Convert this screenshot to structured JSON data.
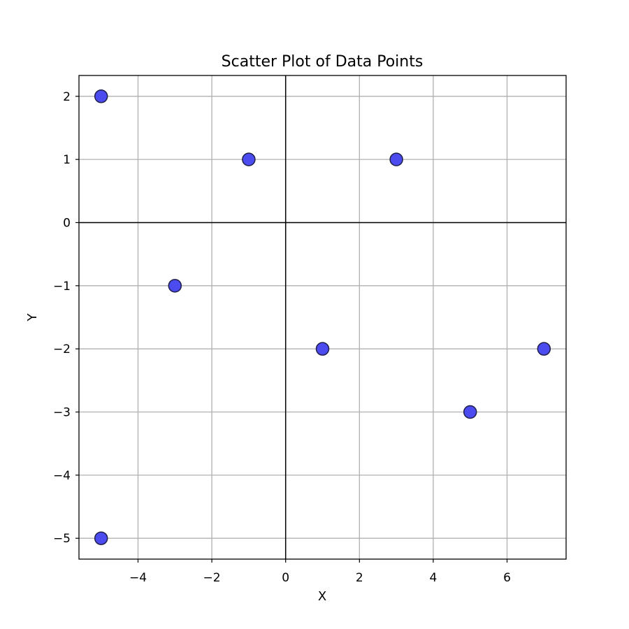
{
  "chart_data": {
    "type": "scatter",
    "title": "Scatter Plot of Data Points",
    "xlabel": "X",
    "ylabel": "Y",
    "xlim": [
      -5.6,
      7.6
    ],
    "ylim": [
      -5.33,
      2.33
    ],
    "xticks": [
      -4,
      -2,
      0,
      2,
      4,
      6
    ],
    "yticks": [
      2,
      1,
      0,
      -1,
      -2,
      -3,
      -4,
      -5
    ],
    "xtick_labels": [
      "−4",
      "−2",
      "0",
      "2",
      "4",
      "6"
    ],
    "ytick_labels": [
      "2",
      "1",
      "0",
      "−1",
      "−2",
      "−3",
      "−4",
      "−5"
    ],
    "grid": true,
    "zero_lines": true,
    "points": [
      {
        "x": -5,
        "y": 2
      },
      {
        "x": -1,
        "y": 1
      },
      {
        "x": 3,
        "y": 1
      },
      {
        "x": -3,
        "y": -1
      },
      {
        "x": 1,
        "y": -2
      },
      {
        "x": 7,
        "y": -2
      },
      {
        "x": 5,
        "y": -3
      },
      {
        "x": -5,
        "y": -5
      }
    ],
    "colors": {
      "marker_fill": "#4b4bf0",
      "marker_edge": "#1f1f4a",
      "grid": "#b0b0b0",
      "axis": "#000000"
    }
  }
}
